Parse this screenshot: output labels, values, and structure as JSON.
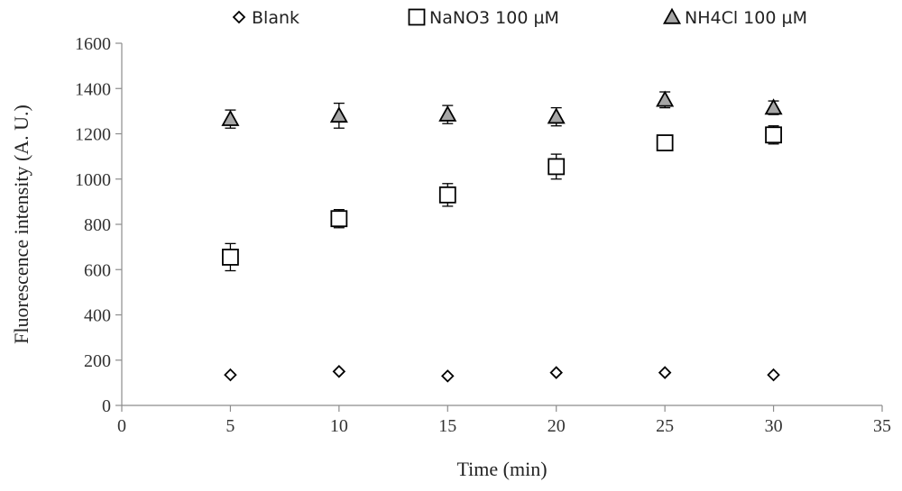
{
  "chart_data": {
    "type": "scatter",
    "title": "",
    "xlabel": "Time (min)",
    "ylabel": "Fluorescence intensity (A. U.)",
    "xlim": [
      0,
      35
    ],
    "ylim": [
      0,
      1600
    ],
    "xticks": [
      0,
      5,
      10,
      15,
      20,
      25,
      30,
      35
    ],
    "yticks": [
      0,
      200,
      400,
      600,
      800,
      1000,
      1200,
      1400,
      1600
    ],
    "grid": false,
    "legend_position": "top",
    "x": [
      5,
      10,
      15,
      20,
      25,
      30
    ],
    "series": [
      {
        "name": "Blank",
        "marker": "diamond",
        "fill": "#ffffff",
        "stroke": "#000000",
        "values": [
          135,
          150,
          130,
          145,
          145,
          135
        ],
        "errors": [
          0,
          0,
          0,
          0,
          0,
          0
        ]
      },
      {
        "name": "NaNO3 100 µM",
        "marker": "square",
        "fill": "#ffffff",
        "stroke": "#000000",
        "values": [
          655,
          825,
          930,
          1055,
          1160,
          1195
        ],
        "errors": [
          60,
          40,
          50,
          55,
          25,
          40
        ]
      },
      {
        "name": "NH4Cl 100 µM",
        "marker": "triangle",
        "fill": "#a6a6a6",
        "stroke": "#000000",
        "values": [
          1265,
          1280,
          1285,
          1275,
          1350,
          1315
        ],
        "errors": [
          40,
          55,
          40,
          40,
          35,
          30
        ]
      }
    ]
  }
}
